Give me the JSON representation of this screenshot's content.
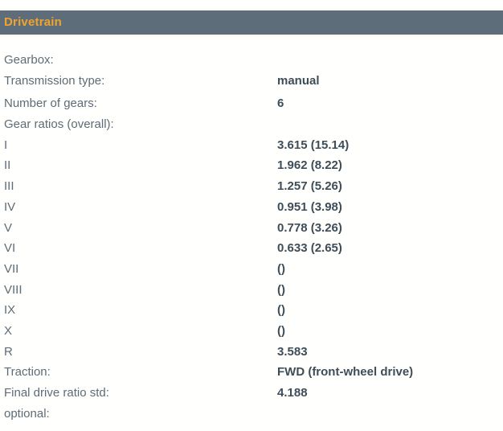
{
  "section": {
    "title": "Drivetrain"
  },
  "colors": {
    "header_background": "#5d6e7a",
    "header_text": "#f1a32d",
    "label_text": "#5d6c76",
    "value_text": "#3e4d58",
    "page_background": "#ffffff"
  },
  "rows": [
    {
      "label": "Gearbox:",
      "value": ""
    },
    {
      "label": "Transmission type:",
      "value": "manual"
    },
    {
      "label": "Number of gears:",
      "value": "6"
    },
    {
      "label": "Gear ratios (overall):",
      "value": ""
    },
    {
      "label": "I",
      "value": "3.615 (15.14)"
    },
    {
      "label": "II",
      "value": "1.962 (8.22)"
    },
    {
      "label": "III",
      "value": "1.257 (5.26)"
    },
    {
      "label": "IV",
      "value": "0.951 (3.98)"
    },
    {
      "label": "V",
      "value": "0.778 (3.26)"
    },
    {
      "label": "VI",
      "value": "0.633 (2.65)"
    },
    {
      "label": "VII",
      "value": "()"
    },
    {
      "label": "VIII",
      "value": "()"
    },
    {
      "label": "IX",
      "value": "()"
    },
    {
      "label": "X",
      "value": "()"
    },
    {
      "label": "R",
      "value": "3.583"
    },
    {
      "label": "Traction:",
      "value": "FWD (front-wheel drive)"
    },
    {
      "label": "Final drive ratio std:",
      "value": "4.188"
    },
    {
      "label": "optional:",
      "value": ""
    }
  ]
}
